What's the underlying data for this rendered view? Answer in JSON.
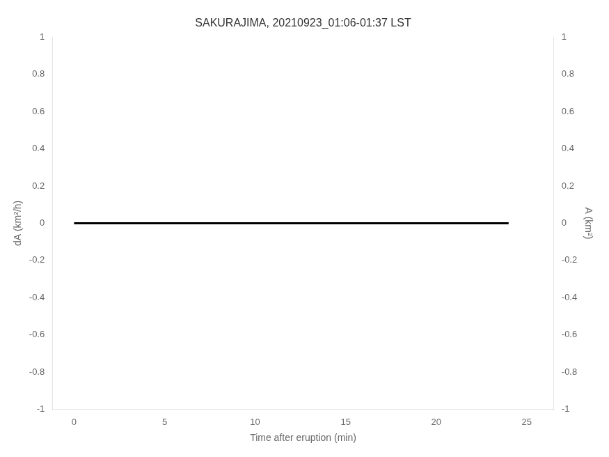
{
  "chart_data": {
    "type": "line",
    "title": "SAKURAJIMA, 20210923_01:06-01:37 LST",
    "x_label": "Time after eruption (min)",
    "y_label": "dA (km²/h)",
    "y2_label": "A (km²)",
    "xlim": [
      -1.2,
      26.5
    ],
    "xticks": [
      0,
      5,
      10,
      15,
      20,
      25
    ],
    "ylim": [
      -1,
      1
    ],
    "yticks": [
      -1,
      -0.8,
      -0.6,
      -0.4,
      -0.2,
      0,
      0.2,
      0.4,
      0.6,
      0.8,
      1
    ],
    "y2lim": [
      -1,
      1
    ],
    "y2ticks": [
      -1,
      -0.8,
      -0.6,
      -0.4,
      -0.2,
      0,
      0.2,
      0.4,
      0.6,
      0.8,
      1
    ],
    "grid": false,
    "series": [
      {
        "x": [
          0,
          24
        ],
        "values": [
          0,
          0
        ],
        "color": "#000000"
      }
    ]
  }
}
